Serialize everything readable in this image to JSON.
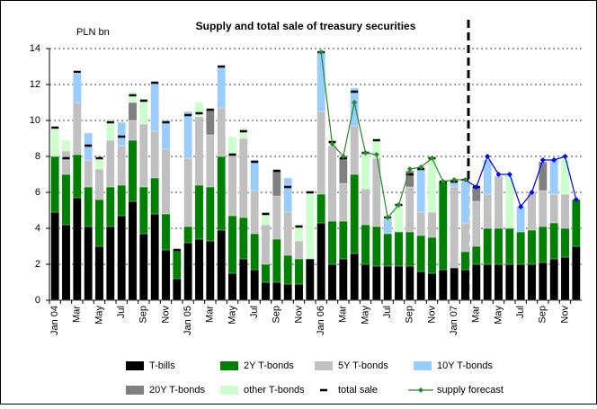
{
  "chart_data": {
    "type": "bar",
    "stacked": true,
    "title": "Supply and total sale of treasury securities",
    "y_unit_label": "PLN bn",
    "categories": [
      "Jan 04",
      null,
      "Mar",
      null,
      "May",
      null,
      "Jul",
      null,
      "Sep",
      null,
      "Nov",
      null,
      "Jan 05",
      null,
      "Mar",
      null,
      "May",
      null,
      "Jul",
      null,
      "Sep",
      null,
      "Nov",
      null,
      "Jan 06",
      null,
      "Mar",
      null,
      "May",
      null,
      "Jul",
      null,
      "Sep",
      null,
      "Nov",
      null,
      "Jan 07",
      null,
      "Mar",
      null,
      "May",
      null,
      "Jul",
      null,
      "Sep",
      null,
      "Nov",
      null
    ],
    "ylim": [
      0,
      14
    ],
    "yticks": [
      0,
      2,
      4,
      6,
      8,
      10,
      12,
      14
    ],
    "grid": true,
    "legend": "bottom",
    "series": [
      {
        "name": "T-bills",
        "type": "bar",
        "color": "#000000",
        "values": [
          4.9,
          4.2,
          5.7,
          4.1,
          3.0,
          4.1,
          4.7,
          5.5,
          3.7,
          4.8,
          2.8,
          1.2,
          3.2,
          3.4,
          3.3,
          3.9,
          1.5,
          2.3,
          1.7,
          1.0,
          1.0,
          0.9,
          0.9,
          2.3,
          4.3,
          2.0,
          2.3,
          2.6,
          2.0,
          1.9,
          1.9,
          1.9,
          1.9,
          1.6,
          1.5,
          1.7,
          1.8,
          1.7,
          2.0,
          2.0,
          2.0,
          2.0,
          2.0,
          2.0,
          2.1,
          2.3,
          2.4,
          3.0
        ]
      },
      {
        "name": "2Y T-bonds",
        "type": "bar",
        "color": "#008000",
        "values": [
          3.1,
          2.8,
          2.4,
          2.2,
          2.6,
          2.2,
          1.7,
          3.4,
          2.6,
          2.0,
          2.0,
          1.6,
          0.9,
          3.0,
          3.0,
          4.1,
          3.2,
          2.3,
          2.0,
          1.0,
          2.4,
          1.6,
          1.4,
          0,
          1.6,
          2.4,
          2.1,
          4.4,
          2.2,
          2.2,
          1.8,
          1.9,
          1.9,
          2.0,
          2.0,
          4.9,
          0,
          1.0,
          1.0,
          2.0,
          2.0,
          2.0,
          1.8,
          1.9,
          2.0,
          2.0,
          1.6,
          2.6
        ]
      },
      {
        "name": "5Y T-bonds",
        "type": "bar",
        "color": "#c0c0c0",
        "values": [
          0,
          1.3,
          2.9,
          1.5,
          1.7,
          2.6,
          2.2,
          1.1,
          3.5,
          2.6,
          3.6,
          0,
          3.8,
          3.8,
          2.9,
          2.7,
          3.4,
          4.4,
          2.4,
          2.2,
          2.4,
          2.4,
          1.0,
          0,
          4.6,
          4.2,
          2.1,
          2.7,
          2.0,
          3.8,
          0,
          0,
          2.5,
          1.3,
          1.4,
          0,
          4.5,
          1.6,
          2.5,
          1.9,
          2.9,
          0,
          0,
          2.1,
          2.0,
          1.6,
          1.9,
          0
        ]
      },
      {
        "name": "10Y T-bonds",
        "type": "bar",
        "color": "#99ccff",
        "values": [
          0,
          0,
          1.6,
          1.5,
          0,
          0,
          1.3,
          0,
          0,
          2.7,
          1.6,
          0,
          2.6,
          0,
          0,
          2.3,
          0,
          0,
          1.7,
          0,
          0,
          1.9,
          0,
          0,
          3.3,
          0,
          0,
          2.1,
          0,
          0,
          0.8,
          0,
          0,
          2.4,
          0,
          0,
          0.3,
          2.3,
          0,
          1.9,
          0,
          0,
          1.4,
          0,
          0,
          1.9,
          0,
          0
        ]
      },
      {
        "name": "20Y T-bonds",
        "type": "bar",
        "color": "#808080",
        "values": [
          0,
          0,
          0,
          0,
          0,
          0,
          0,
          1.0,
          0,
          0,
          0,
          0,
          0,
          0,
          1.4,
          0,
          0,
          0,
          0,
          0,
          1.4,
          0,
          0,
          0,
          0,
          0,
          1.4,
          0,
          0,
          0,
          0,
          0,
          0.9,
          0,
          0,
          0,
          0,
          0,
          0.8,
          0,
          0,
          0,
          0,
          0,
          1.6,
          0,
          0,
          0
        ]
      },
      {
        "name": "other T-bonds",
        "type": "bar",
        "color": "#ccffcc",
        "values": [
          1.5,
          0.6,
          0,
          0,
          0.6,
          1.1,
          0,
          0.6,
          1.4,
          0,
          0,
          0,
          0,
          0.8,
          0,
          0,
          1.0,
          0.6,
          0,
          0.7,
          0,
          0,
          0.9,
          3.6,
          0,
          0,
          0,
          0,
          2.0,
          1.0,
          0,
          1.4,
          0,
          0,
          3.0,
          0,
          0,
          0,
          0,
          0,
          0,
          3.0,
          0,
          0,
          0,
          0,
          2.0,
          0
        ]
      },
      {
        "name": "total sale",
        "type": "dash",
        "color": "#000000",
        "values": [
          9.6,
          7.9,
          12.7,
          8.6,
          7.9,
          9.9,
          9.1,
          11.4,
          11.1,
          12.1,
          9.9,
          2.8,
          10.3,
          10.4,
          10.6,
          13.0,
          8.1,
          9.4,
          7.7,
          4.8,
          7.2,
          6.3,
          4.1,
          6.0,
          13.8,
          8.8,
          7.9,
          11.6,
          8.2,
          8.9,
          4.6,
          5.3,
          7.0,
          7.3,
          7.9,
          6.6,
          6.6,
          6.7,
          6.3,
          null,
          null,
          null,
          null,
          null,
          null,
          null,
          null,
          null
        ]
      },
      {
        "name": "supply forecast",
        "type": "line",
        "color": "#228b22",
        "values": [
          null,
          null,
          null,
          null,
          null,
          null,
          null,
          null,
          null,
          null,
          null,
          null,
          null,
          null,
          null,
          null,
          null,
          null,
          null,
          null,
          null,
          null,
          null,
          null,
          13.8,
          8.7,
          8.0,
          11.0,
          8.2,
          8.1,
          4.6,
          5.3,
          7.3,
          7.4,
          7.9,
          6.6,
          6.7,
          6.7,
          6.3,
          8.0,
          7.0,
          7.0,
          5.2,
          6.0,
          7.8,
          7.8,
          8.0,
          5.6
        ],
        "point_colors": [
          null,
          null,
          null,
          null,
          null,
          null,
          null,
          null,
          null,
          null,
          null,
          null,
          null,
          null,
          null,
          null,
          null,
          null,
          null,
          null,
          null,
          null,
          null,
          null,
          "#228b22",
          "#228b22",
          "#228b22",
          "#228b22",
          "#228b22",
          "#228b22",
          "#228b22",
          "#228b22",
          "#228b22",
          "#228b22",
          "#228b22",
          "#228b22",
          "#228b22",
          "#228b22",
          "#0000ff",
          "#0000ff",
          "#0000ff",
          "#0000ff",
          "#0000ff",
          "#0000ff",
          "#0000ff",
          "#0000ff",
          "#0000ff",
          "#0000ff"
        ]
      }
    ]
  }
}
